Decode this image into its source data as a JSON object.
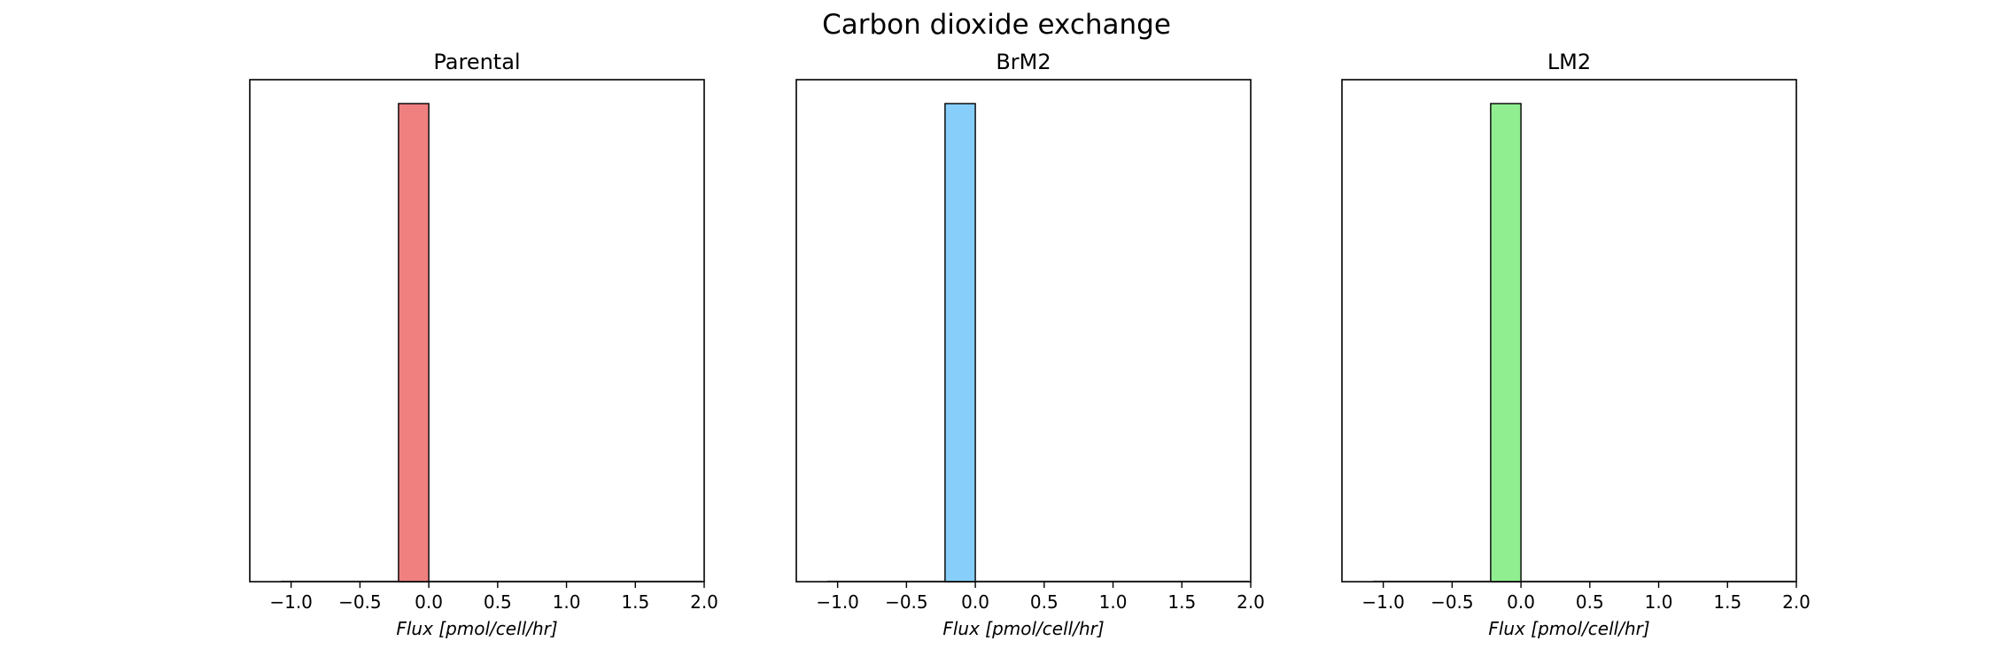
{
  "title": "Carbon dioxide exchange",
  "chart_data": [
    {
      "type": "bar",
      "title": "Parental",
      "xlabel": "Flux [pmol/cell/hr]",
      "ylabel": "",
      "xlim": [
        -1.3,
        2.0
      ],
      "ylim": [
        0,
        1.05
      ],
      "xticks": [
        -1.0,
        -0.5,
        0.0,
        0.5,
        1.0,
        1.5,
        2.0
      ],
      "xtick_labels": [
        "−1.0",
        "−0.5",
        "0.0",
        "0.5",
        "1.0",
        "1.5",
        "2.0"
      ],
      "y_axis_visible": false,
      "grid": false,
      "bins": [
        {
          "x0": -0.22,
          "x1": 0.0,
          "value": 1.0
        }
      ],
      "color": "#f08080"
    },
    {
      "type": "bar",
      "title": "BrM2",
      "xlabel": "Flux [pmol/cell/hr]",
      "ylabel": "",
      "xlim": [
        -1.3,
        2.0
      ],
      "ylim": [
        0,
        1.05
      ],
      "xticks": [
        -1.0,
        -0.5,
        0.0,
        0.5,
        1.0,
        1.5,
        2.0
      ],
      "xtick_labels": [
        "−1.0",
        "−0.5",
        "0.0",
        "0.5",
        "1.0",
        "1.5",
        "2.0"
      ],
      "y_axis_visible": false,
      "grid": false,
      "bins": [
        {
          "x0": -0.22,
          "x1": 0.0,
          "value": 1.0
        }
      ],
      "color": "#87cefa"
    },
    {
      "type": "bar",
      "title": "LM2",
      "xlabel": "Flux [pmol/cell/hr]",
      "ylabel": "",
      "xlim": [
        -1.3,
        2.0
      ],
      "ylim": [
        0,
        1.05
      ],
      "xticks": [
        -1.0,
        -0.5,
        0.0,
        0.5,
        1.0,
        1.5,
        2.0
      ],
      "xtick_labels": [
        "−1.0",
        "−0.5",
        "0.0",
        "0.5",
        "1.0",
        "1.5",
        "2.0"
      ],
      "y_axis_visible": false,
      "grid": false,
      "bins": [
        {
          "x0": -0.22,
          "x1": 0.0,
          "value": 1.0
        }
      ],
      "color": "#90ee90"
    }
  ]
}
